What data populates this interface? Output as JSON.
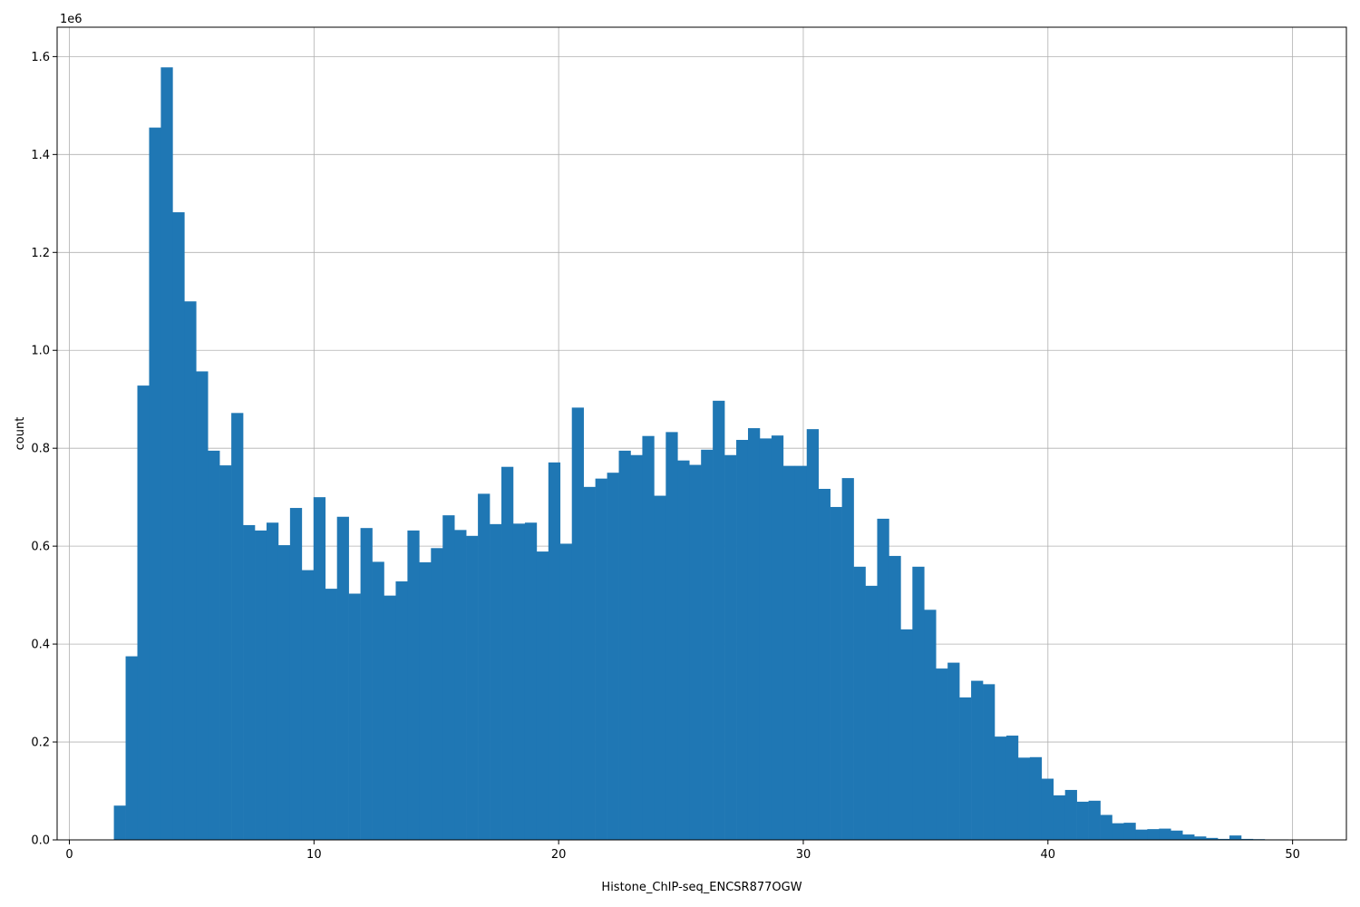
{
  "chart_data": {
    "type": "bar",
    "subtype": "histogram",
    "xlabel": "Histone_ChIP-seq_ENCSR877OGW",
    "ylabel": "count",
    "y_offset_text": "1e6",
    "bar_color": "#1f77b4",
    "grid": true,
    "xlim": [
      -0.5,
      52.2
    ],
    "ylim": [
      0,
      1660000
    ],
    "x_ticks": [
      0,
      10,
      20,
      30,
      40,
      50
    ],
    "x_tick_labels": [
      "0",
      "10",
      "20",
      "30",
      "40",
      "50"
    ],
    "y_ticks": [
      0,
      200000,
      400000,
      600000,
      800000,
      1000000,
      1200000,
      1400000,
      1600000
    ],
    "y_tick_labels": [
      "0.0",
      "0.2",
      "0.4",
      "0.6",
      "0.8",
      "1.0",
      "1.2",
      "1.4",
      "1.6"
    ],
    "bin_start": 1.82,
    "bin_width": 0.48,
    "values": [
      70000,
      375000,
      928000,
      1455000,
      1578000,
      1282000,
      1100000,
      957000,
      795000,
      765000,
      872000,
      643000,
      632000,
      648000,
      602000,
      678000,
      551000,
      700000,
      513000,
      660000,
      503000,
      637000,
      568000,
      499000,
      528000,
      632000,
      567000,
      596000,
      663000,
      633000,
      621000,
      707000,
      645000,
      762000,
      646000,
      648000,
      589000,
      771000,
      605000,
      883000,
      721000,
      738000,
      750000,
      795000,
      786000,
      825000,
      703000,
      833000,
      775000,
      766000,
      797000,
      897000,
      786000,
      817000,
      841000,
      820000,
      826000,
      764000,
      764000,
      839000,
      717000,
      680000,
      739000,
      558000,
      519000,
      656000,
      580000,
      430000,
      558000,
      470000,
      350000,
      362000,
      291000,
      325000,
      318000,
      211000,
      213000,
      168000,
      169000,
      125000,
      91000,
      102000,
      78000,
      80000,
      51000,
      34000,
      35000,
      21000,
      22000,
      23000,
      19000,
      11000,
      7000,
      4000,
      2000,
      9000,
      2000,
      1500,
      1000,
      1000
    ]
  }
}
